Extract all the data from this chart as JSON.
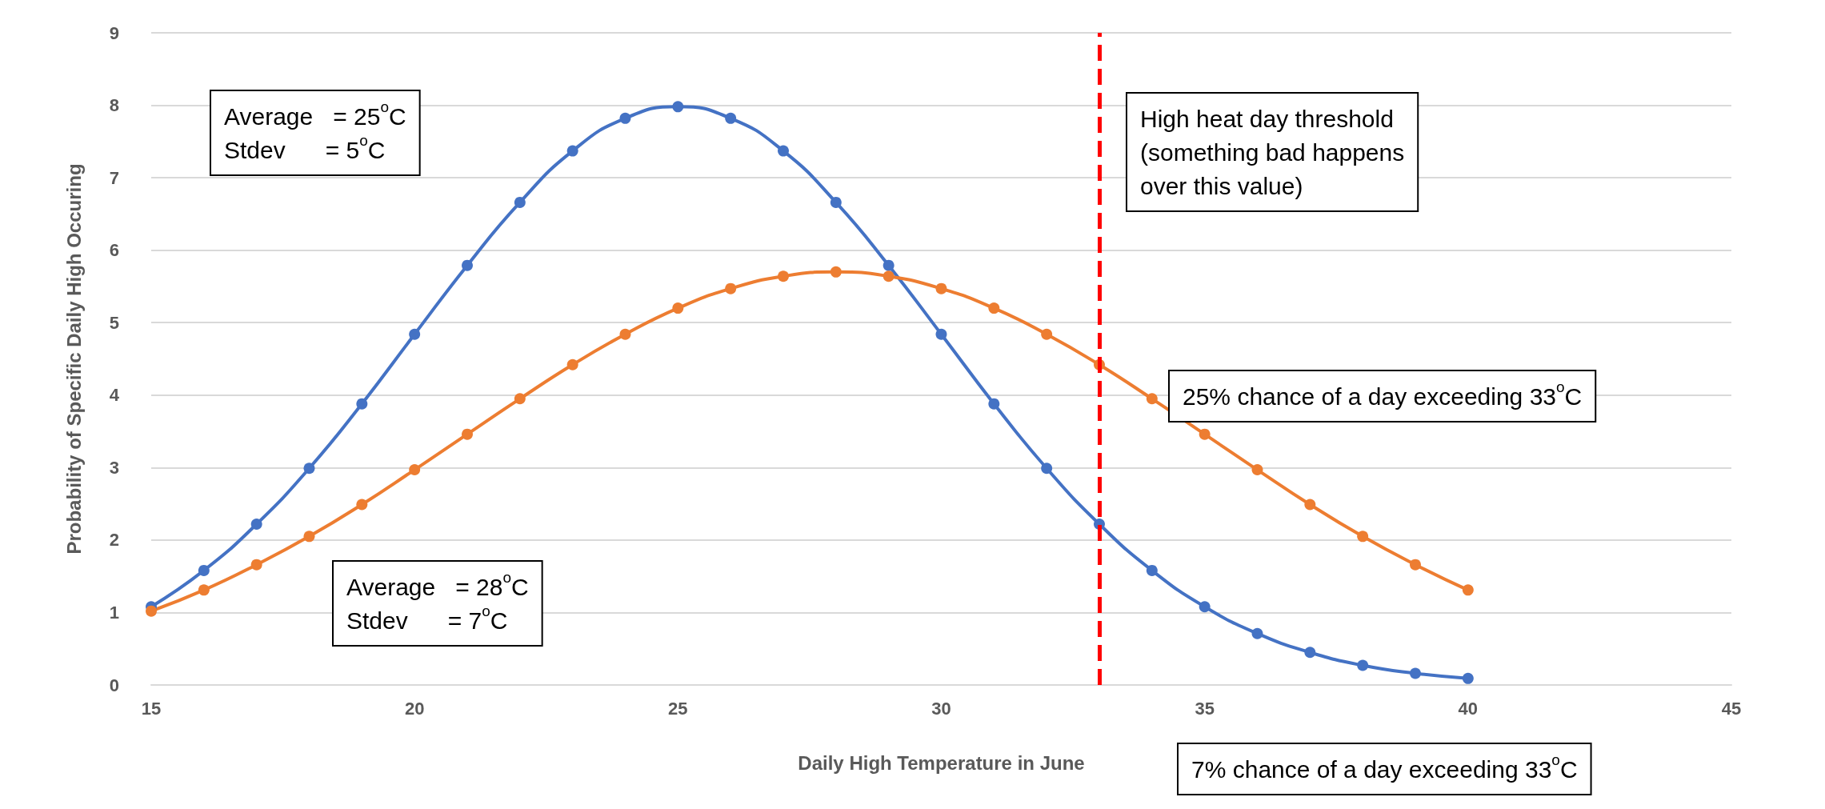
{
  "chart_data": {
    "type": "line",
    "xlabel": "Daily High Temperature in June",
    "ylabel": "Probability of Specific Daily High Occuring",
    "x": [
      15,
      16,
      17,
      18,
      19,
      20,
      21,
      22,
      23,
      24,
      25,
      26,
      27,
      28,
      29,
      30,
      31,
      32,
      33,
      34,
      35,
      36,
      37,
      38,
      39,
      40
    ],
    "series": [
      {
        "color": "#4472c4",
        "values": [
          1.08,
          1.58,
          2.22,
          2.99,
          3.88,
          4.84,
          5.79,
          6.66,
          7.37,
          7.82,
          7.98,
          7.82,
          7.37,
          6.66,
          5.79,
          4.84,
          3.88,
          2.99,
          2.22,
          1.58,
          1.08,
          0.71,
          0.45,
          0.27,
          0.16,
          0.09
        ]
      },
      {
        "color": "#ed7d31",
        "values": [
          1.02,
          1.31,
          1.66,
          2.05,
          2.49,
          2.97,
          3.46,
          3.95,
          4.42,
          4.84,
          5.2,
          5.47,
          5.64,
          5.7,
          5.64,
          5.47,
          5.2,
          4.84,
          4.42,
          3.95,
          3.46,
          2.97,
          2.49,
          2.05,
          1.66,
          1.31
        ]
      }
    ],
    "xlim": [
      15,
      45
    ],
    "xticks": [
      15,
      20,
      25,
      30,
      35,
      40,
      45
    ],
    "ylim": [
      0,
      9
    ],
    "yticks": [
      0,
      1,
      2,
      3,
      4,
      5,
      6,
      7,
      8,
      9
    ],
    "grid": "y",
    "marker": "circle",
    "line_style": "solid",
    "ref_lines": [
      {
        "axis": "x",
        "value": 33,
        "label": "High heat day threshold\n(something bad happens\nover this value)",
        "color": "#ff0000",
        "line_style": "dashed"
      }
    ],
    "annotations": [
      "Average   = 25$^{o}$C\nStdev      = 5$^{o}$C",
      "Average   = 28$^{o}$C\nStdev      = 7$^{o}$C",
      "25% chance of a day exceeding 33$^{o}$C",
      "7% chance of a day exceeding 33$^{o}$C"
    ]
  }
}
